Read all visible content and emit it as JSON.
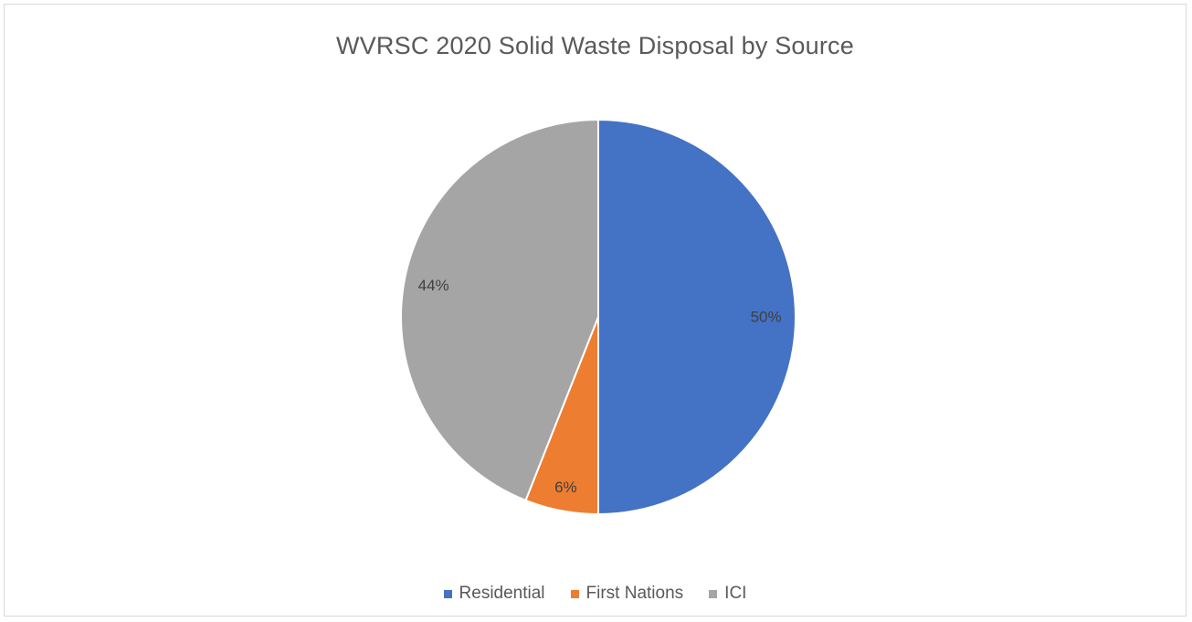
{
  "chart_data": {
    "type": "pie",
    "title": "WVRSC 2020 Solid Waste Disposal by Source",
    "categories": [
      "Residential",
      "First Nations",
      "ICI"
    ],
    "values": [
      50,
      6,
      44
    ],
    "labels": [
      "50%",
      "6%",
      "44%"
    ],
    "colors": [
      "#4472c4",
      "#ed7d31",
      "#a5a5a5"
    ],
    "start_angle": "12 o'clock",
    "direction": "clockwise",
    "legend_position": "bottom"
  }
}
